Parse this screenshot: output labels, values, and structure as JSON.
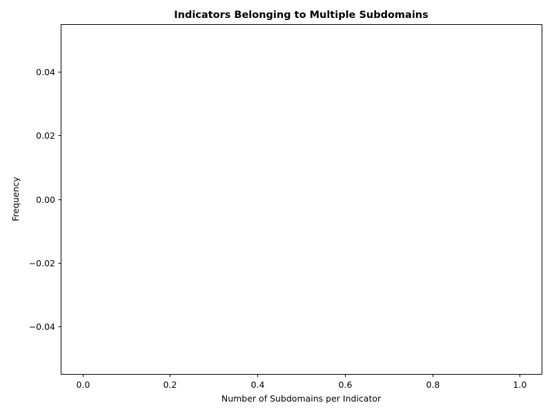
{
  "chart_data": {
    "type": "bar",
    "title": "Indicators Belonging to Multiple Subdomains",
    "xlabel": "Number of Subdomains per Indicator",
    "ylabel": "Frequency",
    "xlim": [
      -0.05,
      1.05
    ],
    "ylim": [
      -0.055,
      0.055
    ],
    "x_ticks": [
      0.0,
      0.2,
      0.4,
      0.6,
      0.8,
      1.0
    ],
    "x_tick_labels": [
      "0.0",
      "0.2",
      "0.4",
      "0.6",
      "0.8",
      "1.0"
    ],
    "y_ticks": [
      -0.04,
      -0.02,
      0.0,
      0.02,
      0.04
    ],
    "y_tick_labels": [
      "−0.04",
      "−0.02",
      "0.00",
      "0.02",
      "0.04"
    ],
    "categories": [],
    "values": [],
    "grid": false,
    "legend": "none"
  }
}
